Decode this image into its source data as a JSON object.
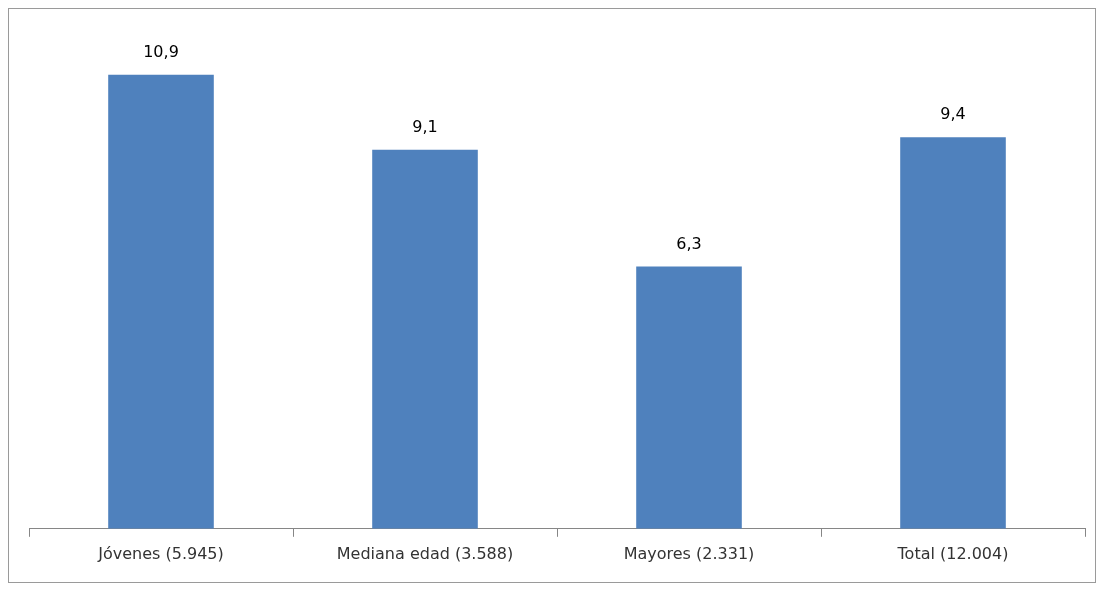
{
  "chart_data": {
    "type": "bar",
    "categories": [
      "Jóvenes (5.945)",
      "Mediana edad (3.588)",
      "Mayores (2.331)",
      "Total (12.004)"
    ],
    "values": [
      10.9,
      9.1,
      6.3,
      9.4
    ],
    "value_labels": [
      "10,9",
      "9,1",
      "6,3",
      "9,4"
    ],
    "color": "#4f81bd",
    "legend": false,
    "grid": false
  }
}
